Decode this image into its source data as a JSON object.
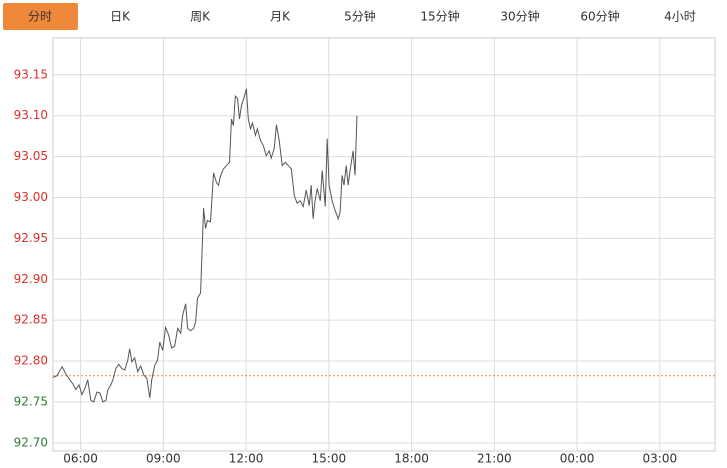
{
  "tabs": [
    "分时",
    "日K",
    "周K",
    "月K",
    "5分钟",
    "15分钟",
    "30分钟",
    "60分钟",
    "4小时"
  ],
  "active_tab": 0,
  "chart_data": {
    "type": "line",
    "color": "#555555",
    "reference_line": 92.782,
    "reference_color": "#f0883a",
    "up_color": "#d9302c",
    "down_color": "#2e7d32",
    "grid": true,
    "xlim": [
      5,
      29
    ],
    "xticks": [
      {
        "value": 6,
        "label": "06:00"
      },
      {
        "value": 9,
        "label": "09:00"
      },
      {
        "value": 12,
        "label": "12:00"
      },
      {
        "value": 15,
        "label": "15:00"
      },
      {
        "value": 18,
        "label": "18:00"
      },
      {
        "value": 21,
        "label": "21:00"
      },
      {
        "value": 24,
        "label": "00:00"
      },
      {
        "value": 27,
        "label": "03:00"
      }
    ],
    "ylim": [
      92.69,
      93.195
    ],
    "yticks": [
      {
        "value": 92.7,
        "label": "92.70"
      },
      {
        "value": 92.75,
        "label": "92.75"
      },
      {
        "value": 92.8,
        "label": "92.80"
      },
      {
        "value": 92.85,
        "label": "92.85"
      },
      {
        "value": 92.9,
        "label": "92.90"
      },
      {
        "value": 92.95,
        "label": "92.95"
      },
      {
        "value": 93.0,
        "label": "93.00"
      },
      {
        "value": 93.05,
        "label": "93.05"
      },
      {
        "value": 93.1,
        "label": "93.10"
      },
      {
        "value": 93.15,
        "label": "93.15"
      }
    ],
    "x": [
      5.0,
      5.14,
      5.33,
      5.47,
      5.61,
      5.72,
      5.83,
      5.94,
      6.05,
      6.16,
      6.26,
      6.37,
      6.48,
      6.59,
      6.7,
      6.81,
      6.92,
      6.99,
      7.1,
      7.17,
      7.28,
      7.39,
      7.49,
      7.6,
      7.71,
      7.78,
      7.86,
      7.96,
      8.07,
      8.18,
      8.29,
      8.4,
      8.51,
      8.58,
      8.69,
      8.79,
      8.87,
      8.98,
      9.08,
      9.19,
      9.3,
      9.41,
      9.52,
      9.63,
      9.7,
      9.81,
      9.88,
      9.99,
      10.1,
      10.17,
      10.24,
      10.35,
      10.46,
      10.53,
      10.6,
      10.71,
      10.82,
      10.93,
      11.0,
      11.07,
      11.18,
      11.29,
      11.4,
      11.47,
      11.54,
      11.61,
      11.69,
      11.76,
      11.83,
      11.94,
      12.01,
      12.08,
      12.16,
      12.23,
      12.34,
      12.41,
      12.52,
      12.63,
      12.73,
      12.84,
      12.91,
      13.02,
      13.1,
      13.2,
      13.31,
      13.42,
      13.53,
      13.64,
      13.75,
      13.85,
      13.96,
      14.07,
      14.18,
      14.29,
      14.36,
      14.43,
      14.5,
      14.58,
      14.69,
      14.76,
      14.87,
      14.94,
      15.01,
      15.12,
      15.23,
      15.34,
      15.41,
      15.48,
      15.55,
      15.63,
      15.7,
      15.77,
      15.88,
      15.95,
      16.02
    ],
    "values": [
      92.78,
      92.782,
      92.793,
      92.784,
      92.777,
      92.772,
      92.765,
      92.771,
      92.759,
      92.767,
      92.777,
      92.752,
      92.75,
      92.762,
      92.761,
      92.75,
      92.752,
      92.765,
      92.771,
      92.777,
      92.791,
      92.796,
      92.791,
      92.789,
      92.801,
      92.815,
      92.799,
      92.804,
      92.787,
      92.794,
      92.783,
      92.779,
      92.755,
      92.777,
      92.795,
      92.801,
      92.823,
      92.813,
      92.841,
      92.832,
      92.816,
      92.818,
      92.84,
      92.834,
      92.856,
      92.87,
      92.84,
      92.837,
      92.84,
      92.848,
      92.877,
      92.883,
      92.987,
      92.962,
      92.972,
      92.97,
      93.03,
      93.018,
      93.015,
      93.026,
      93.035,
      93.039,
      93.043,
      93.096,
      93.088,
      93.124,
      93.121,
      93.096,
      93.112,
      93.124,
      93.133,
      93.096,
      93.084,
      93.091,
      93.076,
      93.084,
      93.07,
      93.063,
      93.051,
      93.057,
      93.048,
      93.06,
      93.089,
      93.07,
      93.039,
      93.043,
      93.039,
      93.035,
      93.002,
      92.993,
      92.996,
      92.989,
      93.009,
      92.99,
      93.015,
      92.974,
      92.996,
      93.011,
      92.996,
      93.033,
      92.989,
      93.072,
      93.015,
      92.996,
      92.984,
      92.974,
      92.982,
      93.027,
      93.015,
      93.039,
      93.015,
      93.033,
      93.057,
      93.027,
      93.1
    ]
  }
}
